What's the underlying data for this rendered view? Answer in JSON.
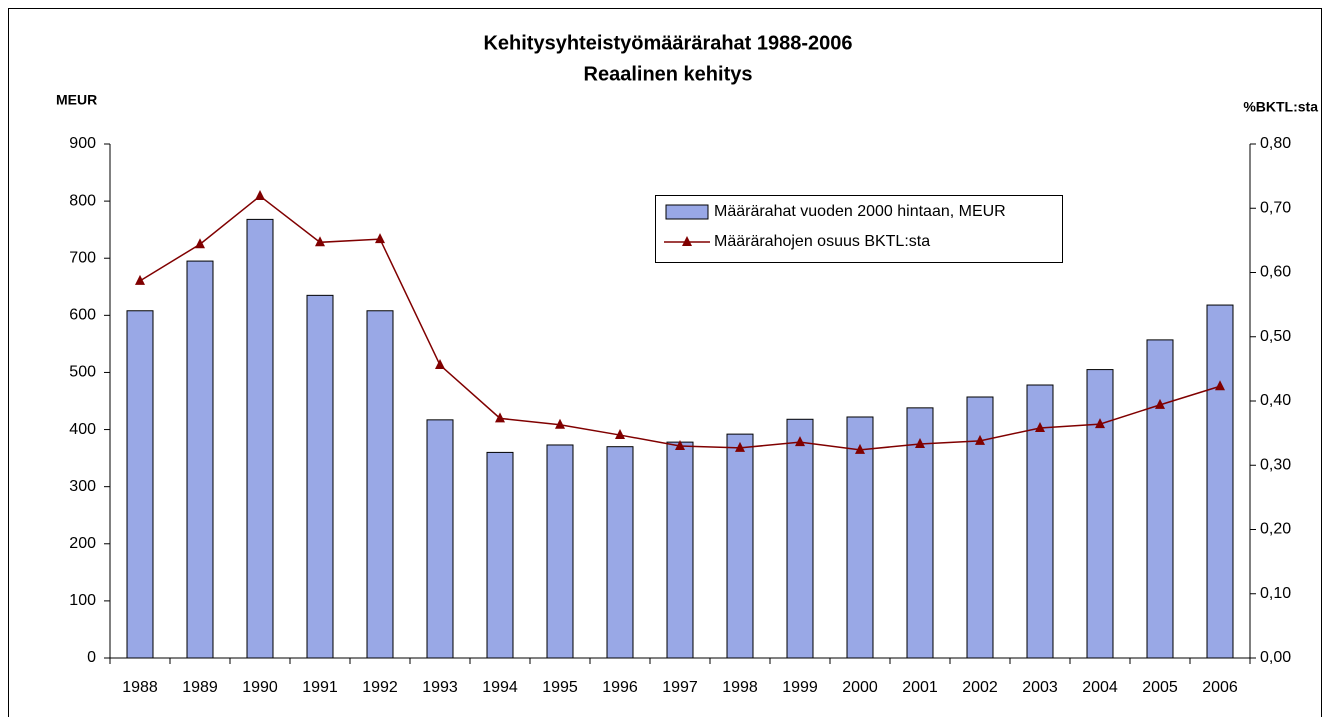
{
  "chart_data": {
    "type": "bar_line",
    "title": "Kehitysyhteistyömäärärahat 1988-2006",
    "subtitle": "Reaalinen kehitys",
    "y_label": "MEUR",
    "y2_label": "%BKTL:sta",
    "categories": [
      "1988",
      "1989",
      "1990",
      "1991",
      "1992",
      "1993",
      "1994",
      "1995",
      "1996",
      "1997",
      "1998",
      "1999",
      "2000",
      "2001",
      "2002",
      "2003",
      "2004",
      "2005",
      "2006"
    ],
    "series": [
      {
        "name": "Määrärahat vuoden 2000 hintaan, MEUR",
        "type": "bar",
        "color": "#99a8e6",
        "values": [
          608,
          695,
          768,
          635,
          608,
          417,
          360,
          373,
          370,
          378,
          392,
          418,
          422,
          438,
          457,
          478,
          505,
          557,
          618
        ]
      },
      {
        "name": "Määrärahojen osuus BKTL:sta",
        "type": "line",
        "axis": "y2",
        "color": "#800000",
        "values": [
          0.587,
          0.644,
          0.719,
          0.647,
          0.652,
          0.456,
          0.373,
          0.363,
          0.347,
          0.33,
          0.327,
          0.336,
          0.324,
          0.333,
          0.338,
          0.358,
          0.364,
          0.394,
          0.423
        ]
      }
    ],
    "ylim": [
      0,
      900
    ],
    "yticks": [
      0,
      100,
      200,
      300,
      400,
      500,
      600,
      700,
      800,
      900
    ],
    "y2lim": [
      0,
      0.8
    ],
    "y2ticks": [
      {
        "value": 0,
        "label": "0,00"
      },
      {
        "value": 0.1,
        "label": "0,10"
      },
      {
        "value": 0.2,
        "label": "0,20"
      },
      {
        "value": 0.3,
        "label": "0,30"
      },
      {
        "value": 0.4,
        "label": "0,40"
      },
      {
        "value": 0.5,
        "label": "0,50"
      },
      {
        "value": 0.6,
        "label": "0,60"
      },
      {
        "value": 0.7,
        "label": "0,70"
      },
      {
        "value": 0.8,
        "label": "0,80"
      }
    ]
  }
}
